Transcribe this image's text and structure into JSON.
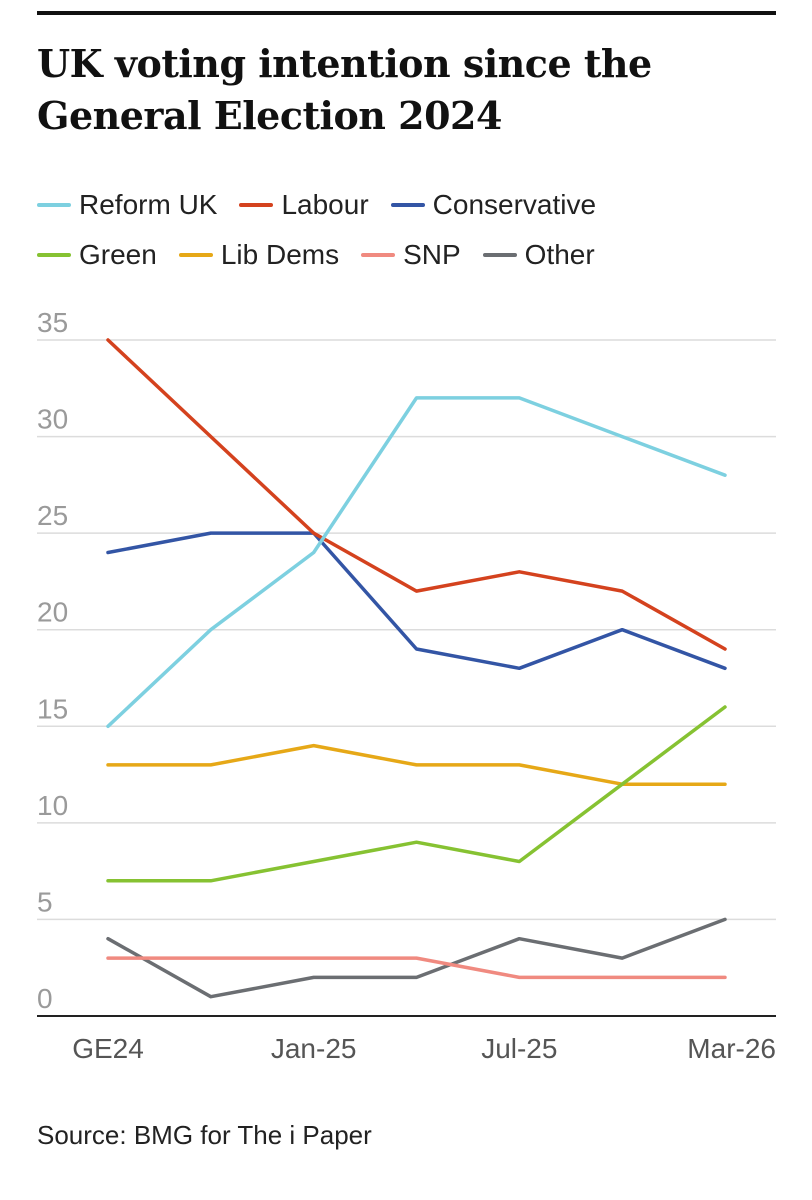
{
  "title": "UK voting intention since the General Election 2024",
  "source": "Source: BMG for The i Paper",
  "chart_data": {
    "type": "line",
    "title": "UK voting intention since the General Election 2024",
    "xlabel": "",
    "ylabel": "",
    "x": [
      "GE24",
      "",
      "Jan-25",
      "",
      "Jul-25",
      "",
      "Mar-26"
    ],
    "x_tick_labels": [
      "GE24",
      "Jan-25",
      "Jul-25",
      "Mar-26"
    ],
    "x_tick_positions": [
      0,
      2,
      4,
      6
    ],
    "y_ticks": [
      35,
      30,
      25,
      20,
      15,
      10,
      5,
      0
    ],
    "ylim": [
      0,
      35
    ],
    "grid": true,
    "legend_position": "top",
    "series": [
      {
        "name": "Reform UK",
        "color": "#7dd0e0",
        "values": [
          15,
          20,
          24,
          32,
          32,
          30,
          28
        ]
      },
      {
        "name": "Labour",
        "color": "#d4421e",
        "values": [
          35,
          30,
          25,
          22,
          23,
          22,
          19
        ]
      },
      {
        "name": "Conservative",
        "color": "#3355a5",
        "values": [
          24,
          25,
          25,
          19,
          18,
          20,
          18
        ]
      },
      {
        "name": "Green",
        "color": "#86c232",
        "values": [
          7,
          7,
          8,
          9,
          8,
          12,
          16
        ]
      },
      {
        "name": "Lib Dems",
        "color": "#e6a817",
        "values": [
          13,
          13,
          14,
          13,
          13,
          12,
          12
        ]
      },
      {
        "name": "SNP",
        "color": "#f08a80",
        "values": [
          3,
          3,
          3,
          3,
          2,
          2,
          2
        ]
      },
      {
        "name": "Other",
        "color": "#6b6e72",
        "values": [
          4,
          1,
          2,
          2,
          4,
          3,
          5
        ]
      }
    ]
  }
}
